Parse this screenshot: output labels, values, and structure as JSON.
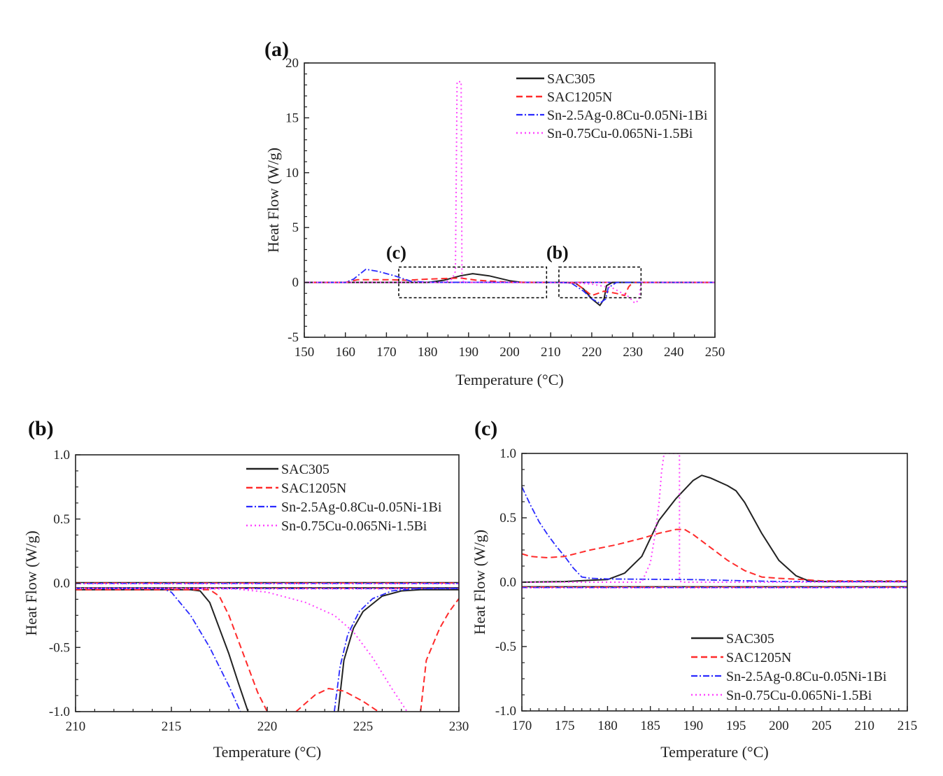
{
  "colors": {
    "SAC305": "#222222",
    "SAC1205N": "#ff2a2a",
    "SnAgCuNiBi": "#2a2aff",
    "SnCuNiBi": "#ff44ff"
  },
  "chart_data": [
    {
      "id": "a",
      "type": "line",
      "panel_label": "(a)",
      "xlabel": "Temperature (°C)",
      "ylabel": "Heat Flow (W/g)",
      "xlim": [
        150,
        250
      ],
      "ylim": [
        -5,
        20
      ],
      "xticks": [
        150,
        160,
        170,
        180,
        190,
        200,
        210,
        220,
        230,
        240,
        250
      ],
      "yticks": [
        -5,
        0,
        5,
        10,
        15,
        20
      ],
      "legend": "top-right",
      "annotations": [
        {
          "label": "(c)",
          "box": {
            "x": [
              173,
              209
            ],
            "y": [
              -1.4,
              1.4
            ]
          }
        },
        {
          "label": "(b)",
          "box": {
            "x": [
              212,
              232
            ],
            "y": [
              -1.4,
              1.4
            ]
          }
        }
      ],
      "series": [
        {
          "name": "SAC305",
          "style": "solid",
          "x": [
            150,
            180,
            184,
            188,
            191,
            195,
            200,
            203,
            212,
            216,
            218,
            220,
            222,
            223,
            223.6,
            225,
            250
          ],
          "y": [
            0,
            0,
            0.2,
            0.6,
            0.8,
            0.6,
            0.15,
            0,
            0,
            -0.05,
            -0.6,
            -1.5,
            -2.1,
            -1.5,
            -0.3,
            0,
            0
          ]
        },
        {
          "name": "SAC1205N",
          "style": "dashed",
          "x": [
            150,
            160,
            163,
            170,
            175,
            180,
            188,
            192,
            200,
            212,
            216,
            218,
            220,
            223,
            226,
            228,
            229,
            230,
            250
          ],
          "y": [
            0,
            0,
            0.25,
            0.25,
            0.2,
            0.3,
            0.4,
            0.2,
            0.02,
            0,
            -0.05,
            -0.6,
            -1.2,
            -0.8,
            -1.0,
            -1.2,
            -0.4,
            0,
            0
          ]
        },
        {
          "name": "Sn-2.5Ag-0.8Cu-0.05Ni-1Bi",
          "style": "dashdot",
          "x": [
            150,
            160,
            162,
            165,
            168,
            172,
            176,
            180,
            212,
            215,
            218,
            220,
            222,
            223.4,
            224,
            226,
            250
          ],
          "y": [
            0,
            0,
            0.3,
            1.2,
            1.0,
            0.6,
            0.1,
            0.02,
            0,
            -0.05,
            -0.8,
            -1.5,
            -1.9,
            -1.5,
            -0.5,
            0,
            0
          ]
        },
        {
          "name": "Sn-0.75Cu-0.065Ni-1.5Bi",
          "style": "dotted",
          "x": [
            150,
            184,
            186,
            186.8,
            187.2,
            188.2,
            188.4,
            188.8,
            190,
            215,
            220,
            225,
            227,
            229,
            230.5,
            231.5,
            232,
            250
          ],
          "y": [
            0,
            0,
            0.3,
            1.0,
            18.3,
            18.3,
            0.5,
            0,
            0,
            -0.03,
            -0.15,
            -0.5,
            -0.9,
            -1.3,
            -1.9,
            -1.6,
            0,
            0
          ]
        }
      ]
    },
    {
      "id": "b",
      "type": "line",
      "panel_label": "(b)",
      "xlabel": "Temperature (°C)",
      "ylabel": "Heat Flow (W/g)",
      "xlim": [
        210,
        230
      ],
      "ylim": [
        -1.0,
        1.0
      ],
      "xticks": [
        210,
        215,
        220,
        225,
        230
      ],
      "yticks": [
        "-1.0",
        "-0.5",
        "0.0",
        "0.5",
        "1.0"
      ],
      "legend": "top-right",
      "series": [
        {
          "name": "SAC305",
          "style": "solid",
          "x": [
            210,
            216,
            216.5,
            217,
            217.5,
            218,
            218.5,
            219
          ],
          "y": [
            -0.05,
            -0.05,
            -0.06,
            -0.15,
            -0.35,
            -0.55,
            -0.78,
            -1.0
          ],
          "x2": [
            223.7,
            224,
            224.5,
            225,
            226,
            227,
            228,
            230
          ],
          "y2": [
            -1.0,
            -0.6,
            -0.35,
            -0.22,
            -0.1,
            -0.06,
            -0.05,
            -0.05
          ]
        },
        {
          "name": "SAC1205N",
          "style": "dashed",
          "x": [
            210,
            217,
            217.5,
            218,
            218.5,
            219,
            219.5,
            220
          ],
          "y": [
            -0.05,
            -0.05,
            -0.1,
            -0.25,
            -0.45,
            -0.65,
            -0.85,
            -1.0
          ],
          "x2": [
            221.5,
            222.5,
            223.2,
            224,
            225,
            225.8
          ],
          "y2": [
            -1.0,
            -0.87,
            -0.82,
            -0.84,
            -0.92,
            -1.0
          ],
          "x3": [
            228,
            228.3,
            229,
            229.5,
            230
          ],
          "y3": [
            -1.0,
            -0.6,
            -0.35,
            -0.22,
            -0.12
          ]
        },
        {
          "name": "Sn-2.5Ag-0.8Cu-0.05Ni-1Bi",
          "style": "dashdot",
          "x": [
            210,
            214.5,
            215,
            216,
            217,
            217.5,
            218,
            218.6
          ],
          "y": [
            -0.04,
            -0.04,
            -0.07,
            -0.25,
            -0.5,
            -0.65,
            -0.8,
            -1.0
          ],
          "x2": [
            223.5,
            223.8,
            224.2,
            224.8,
            225.5,
            226.5,
            228,
            230
          ],
          "y2": [
            -1.0,
            -0.65,
            -0.4,
            -0.22,
            -0.12,
            -0.06,
            -0.04,
            -0.04
          ]
        },
        {
          "name": "Sn-0.75Cu-0.065Ni-1.5Bi",
          "style": "dotted",
          "x": [
            210,
            218,
            220,
            222,
            223.5,
            224.5,
            225.5,
            226.5,
            227.3
          ],
          "y": [
            -0.04,
            -0.04,
            -0.07,
            -0.15,
            -0.25,
            -0.38,
            -0.58,
            -0.82,
            -1.0
          ]
        }
      ],
      "baselines": [
        {
          "y": 0.0
        },
        {
          "y": -0.04
        }
      ]
    },
    {
      "id": "c",
      "type": "line",
      "panel_label": "(c)",
      "xlabel": "Temperature (°C)",
      "ylabel": "Heat Flow (W/g)",
      "xlim": [
        170,
        215
      ],
      "ylim": [
        -1.0,
        1.0
      ],
      "xticks": [
        170,
        175,
        180,
        185,
        190,
        195,
        200,
        205,
        210,
        215
      ],
      "yticks": [
        "-1.0",
        "-0.5",
        "0.0",
        "0.5",
        "1.0"
      ],
      "legend": "bottom-right",
      "series": [
        {
          "name": "SAC305",
          "style": "solid",
          "x": [
            170,
            175,
            178,
            180,
            182,
            184,
            186,
            188,
            190,
            191,
            192,
            194,
            195,
            196,
            198,
            200,
            202,
            203.5,
            205,
            215
          ],
          "y": [
            0.0,
            0.005,
            0.015,
            0.02,
            0.07,
            0.2,
            0.48,
            0.65,
            0.79,
            0.83,
            0.81,
            0.75,
            0.71,
            0.62,
            0.38,
            0.17,
            0.05,
            0.01,
            0.005,
            0.005
          ]
        },
        {
          "name": "SAC1205N",
          "style": "dashed",
          "x": [
            170,
            171,
            173,
            175,
            178,
            181,
            184,
            186,
            188,
            189,
            190,
            192,
            194,
            196,
            198,
            200,
            203,
            205,
            215
          ],
          "y": [
            0.22,
            0.2,
            0.19,
            0.2,
            0.25,
            0.29,
            0.34,
            0.38,
            0.41,
            0.41,
            0.37,
            0.27,
            0.17,
            0.09,
            0.04,
            0.03,
            0.02,
            0.01,
            0.01
          ]
        },
        {
          "name": "Sn-2.5Ag-0.8Cu-0.05Ni-1Bi",
          "style": "dashdot",
          "x": [
            170,
            171,
            172,
            173,
            174,
            175,
            176,
            177,
            178,
            180,
            190,
            200,
            205,
            215
          ],
          "y": [
            0.74,
            0.6,
            0.47,
            0.37,
            0.28,
            0.2,
            0.11,
            0.04,
            0.03,
            0.025,
            0.02,
            0.005,
            0.005,
            0.005
          ]
        },
        {
          "name": "Sn-0.75Cu-0.065Ni-1.5Bi",
          "style": "dotted",
          "x": [
            170,
            184,
            185,
            185.5,
            186,
            186.3,
            186.6,
            188.4,
            188.4,
            188.6,
            190,
            215
          ],
          "y": [
            0.0,
            0.0,
            0.15,
            0.35,
            0.6,
            0.85,
            1.0,
            1.0,
            0.02,
            0.0,
            0.0,
            0.0
          ]
        }
      ],
      "baselines": [
        {
          "y": -0.04
        }
      ]
    }
  ]
}
